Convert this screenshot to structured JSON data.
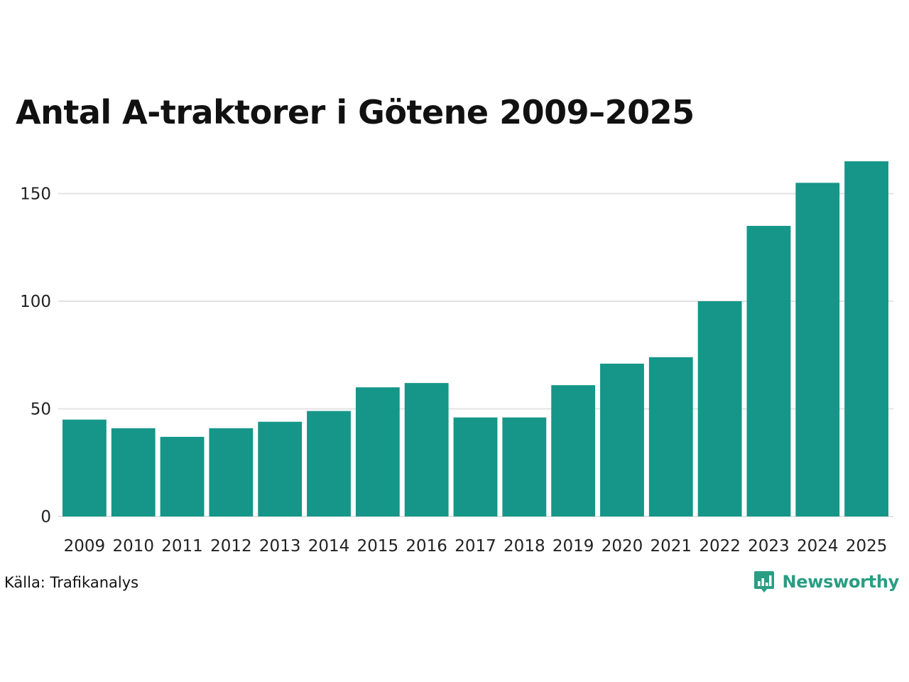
{
  "chart_data": {
    "type": "bar",
    "title": "Antal A-traktorer i Götene 2009–2025",
    "categories": [
      "2009",
      "2010",
      "2011",
      "2012",
      "2013",
      "2014",
      "2015",
      "2016",
      "2017",
      "2018",
      "2019",
      "2020",
      "2021",
      "2022",
      "2023",
      "2024",
      "2025"
    ],
    "values": [
      45,
      41,
      37,
      41,
      44,
      49,
      60,
      62,
      46,
      46,
      61,
      71,
      74,
      100,
      135,
      155,
      165
    ],
    "yticks": [
      0,
      50,
      100,
      150
    ],
    "ylim": [
      0,
      168
    ],
    "grid": true,
    "bar_color": "#159688",
    "grid_color": "#e3e3e3"
  },
  "source": "Källa: Trafikanalys",
  "brand": {
    "name": "Newsworthy",
    "icon": "newsworthy-logo-icon",
    "color": "#2a9d83"
  }
}
